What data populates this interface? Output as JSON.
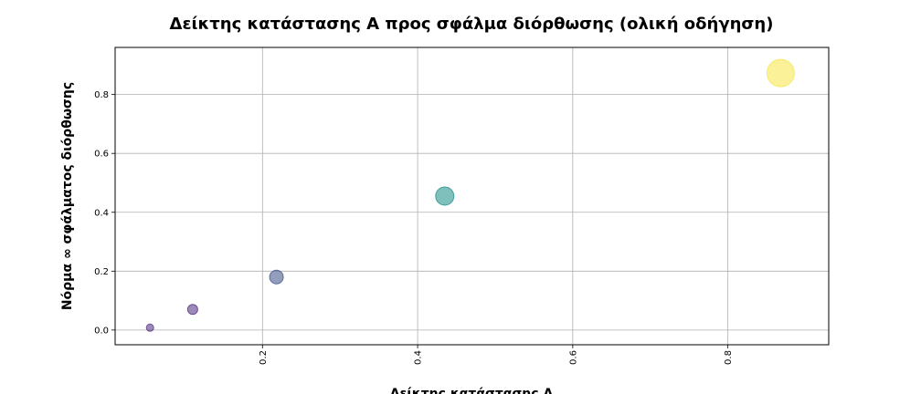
{
  "chart_data": {
    "type": "scatter",
    "title": "Δείκτης κατάστασης A προς σφάλμα διόρθωσης (ολική οδήγηση)",
    "xlabel": "Δείκτης κατάστασης A",
    "ylabel": "Νόρμα ∞ σφάλματος διόρθωσης",
    "xlim": [
      0.01,
      0.93
    ],
    "ylim": [
      -0.05,
      0.96
    ],
    "x_ticks": [
      0.2,
      0.4,
      0.6,
      0.8
    ],
    "y_ticks": [
      0.0,
      0.2,
      0.4,
      0.6,
      0.8
    ],
    "x_tick_labels": [
      "0.2",
      "0.4",
      "0.6",
      "0.8"
    ],
    "y_tick_labels": [
      "0.0",
      "0.2",
      "0.4",
      "0.6",
      "0.8"
    ],
    "grid": true,
    "points": [
      {
        "x": 0.055,
        "y": 0.008,
        "color": "#5e3c8a",
        "size": 1
      },
      {
        "x": 0.11,
        "y": 0.07,
        "color": "#5e3c8a",
        "size": 2
      },
      {
        "x": 0.218,
        "y": 0.18,
        "color": "#4b5e91",
        "size": 3
      },
      {
        "x": 0.435,
        "y": 0.455,
        "color": "#2a9490",
        "size": 4
      },
      {
        "x": 0.868,
        "y": 0.873,
        "color": "#f6e754",
        "size": 6
      }
    ]
  }
}
